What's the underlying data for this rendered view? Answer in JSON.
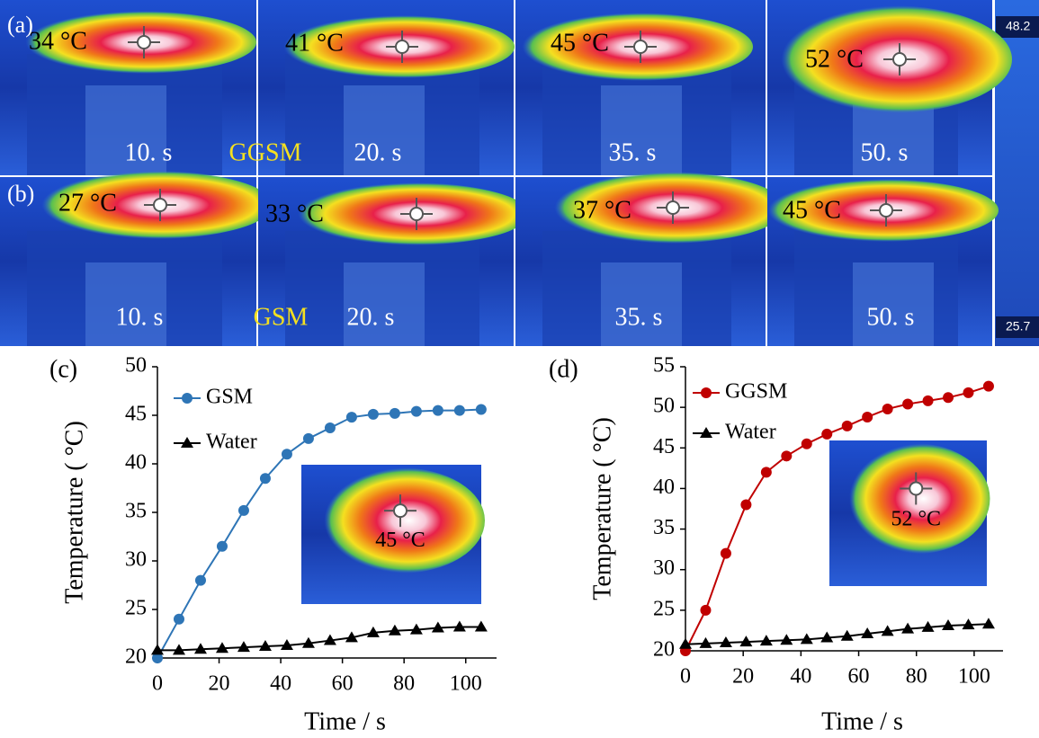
{
  "thermal": {
    "rows": [
      {
        "label": "(a)",
        "sample": "GGSM",
        "frames": [
          {
            "temp": "34 °C",
            "time": "10. s"
          },
          {
            "temp": "41 °C",
            "time": "20. s"
          },
          {
            "temp": "45 °C",
            "time": "35. s"
          },
          {
            "temp": "52 °C",
            "time": "50. s"
          }
        ]
      },
      {
        "label": "(b)",
        "sample": "GSM",
        "frames": [
          {
            "temp": "27 °C",
            "time": "10. s"
          },
          {
            "temp": "33 °C",
            "time": "20. s"
          },
          {
            "temp": "37 °C",
            "time": "35. s"
          },
          {
            "temp": "45 °C",
            "time": "50. s"
          }
        ]
      }
    ],
    "colorbar": {
      "max": "48.2",
      "min": "25.7"
    }
  },
  "chart_data": [
    {
      "type": "line",
      "panel_label": "(c)",
      "x_label": "Time / s",
      "y_label": "Temperature ( °C)",
      "x": [
        0,
        7,
        14,
        21,
        28,
        35,
        42,
        49,
        56,
        63,
        70,
        77,
        84,
        91,
        98,
        105
      ],
      "series": [
        {
          "name": "GSM",
          "color": "#2e75b6",
          "marker": "circle",
          "values": [
            20,
            24,
            28,
            31.5,
            35.2,
            38.5,
            41,
            42.6,
            43.7,
            44.8,
            45.1,
            45.2,
            45.4,
            45.5,
            45.5,
            45.6
          ]
        },
        {
          "name": "Water",
          "color": "#000000",
          "marker": "triangle",
          "values": [
            20.8,
            20.8,
            20.9,
            21,
            21.1,
            21.2,
            21.3,
            21.5,
            21.8,
            22.1,
            22.6,
            22.8,
            22.9,
            23.1,
            23.2,
            23.2
          ]
        }
      ],
      "xlim": [
        0,
        110
      ],
      "ylim": [
        20,
        50
      ],
      "xticks": [
        0,
        20,
        40,
        60,
        80,
        100
      ],
      "yticks": [
        20,
        25,
        30,
        35,
        40,
        45,
        50
      ],
      "inset_label": "45 °C"
    },
    {
      "type": "line",
      "panel_label": "(d)",
      "x_label": "Time / s",
      "y_label": "Temperature ( °C)",
      "x": [
        0,
        7,
        14,
        21,
        28,
        35,
        42,
        49,
        56,
        63,
        70,
        77,
        84,
        91,
        98,
        105
      ],
      "series": [
        {
          "name": "GGSM",
          "color": "#c00000",
          "marker": "circle",
          "values": [
            20,
            25,
            32,
            38,
            42,
            44,
            45.5,
            46.7,
            47.7,
            48.8,
            49.8,
            50.4,
            50.8,
            51.2,
            51.8,
            52.6
          ]
        },
        {
          "name": "Water",
          "color": "#000000",
          "marker": "triangle",
          "values": [
            20.8,
            20.9,
            21,
            21.1,
            21.2,
            21.3,
            21.4,
            21.6,
            21.8,
            22.1,
            22.4,
            22.7,
            22.9,
            23.1,
            23.2,
            23.3
          ]
        }
      ],
      "xlim": [
        0,
        110
      ],
      "ylim": [
        20,
        55
      ],
      "xticks": [
        0,
        20,
        40,
        60,
        80,
        100
      ],
      "yticks": [
        20,
        25,
        30,
        35,
        40,
        45,
        50,
        55
      ],
      "inset_label": "52 °C"
    }
  ]
}
